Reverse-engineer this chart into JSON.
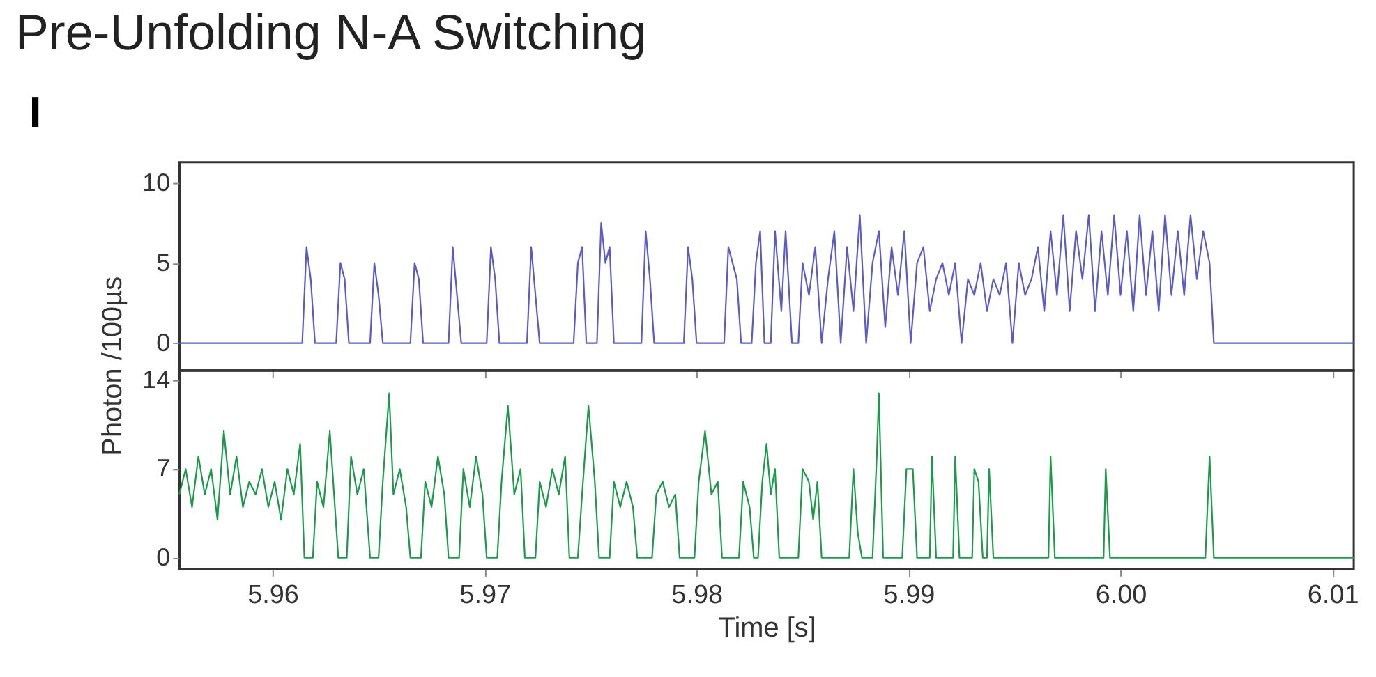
{
  "chart_data": [
    {
      "type": "line",
      "title": "Pre-Unfolding N-A Switching",
      "ylabel": "Photon /100µs",
      "annotations": [
        "I"
      ],
      "xlim": [
        5.9556,
        6.011
      ],
      "xticks": [
        5.96,
        5.97,
        5.98,
        5.99,
        6.0,
        6.01
      ],
      "ylim": [
        -1.7,
        11.3
      ],
      "yticks": [
        0,
        5,
        10
      ],
      "grid": false,
      "tick_labels": "y",
      "series": [
        {
          "color": "#5b5bc8",
          "x": [
            5.9556,
            5.9614,
            5.9616,
            5.9618,
            5.962,
            5.963,
            5.9632,
            5.9634,
            5.9636,
            5.9646,
            5.9648,
            5.965,
            5.9652,
            5.9665,
            5.9667,
            5.9669,
            5.9671,
            5.9683,
            5.9685,
            5.9687,
            5.9689,
            5.9701,
            5.9703,
            5.9705,
            5.9707,
            5.972,
            5.9722,
            5.9724,
            5.9726,
            5.9742,
            5.9744,
            5.9746,
            5.9748,
            5.9753,
            5.9755,
            5.9757,
            5.9759,
            5.9761,
            5.9774,
            5.9776,
            5.9778,
            5.978,
            5.9794,
            5.9796,
            5.9798,
            5.98,
            5.9813,
            5.9815,
            5.9817,
            5.9819,
            5.9821,
            5.9826,
            5.9828,
            5.983,
            5.9832,
            5.9835,
            5.9837,
            5.984,
            5.9842,
            5.9845,
            5.9848,
            5.985,
            5.9853,
            5.9856,
            5.9859,
            5.9862,
            5.9865,
            5.9868,
            5.9871,
            5.9874,
            5.9877,
            5.988,
            5.9883,
            5.9886,
            5.9889,
            5.9892,
            5.9895,
            5.9898,
            5.9901,
            5.9904,
            5.9907,
            5.991,
            5.9913,
            5.9916,
            5.9919,
            5.9922,
            5.9925,
            5.9928,
            5.9931,
            5.9934,
            5.9937,
            5.994,
            5.9943,
            5.9946,
            5.9949,
            5.9952,
            5.9955,
            5.9958,
            5.9961,
            5.9964,
            5.9967,
            5.997,
            5.9973,
            5.9976,
            5.9979,
            5.9982,
            5.9985,
            5.9988,
            5.9991,
            5.9994,
            5.9997,
            6.0,
            6.0003,
            6.0006,
            6.0009,
            6.0012,
            6.0015,
            6.0018,
            6.0021,
            6.0024,
            6.0027,
            6.003,
            6.0033,
            6.0036,
            6.0039,
            6.0042,
            6.0044,
            6.011
          ],
          "values": [
            0,
            0,
            6,
            4,
            0,
            0,
            5,
            4,
            0,
            0,
            5,
            3,
            0,
            0,
            5,
            4,
            0,
            0,
            6,
            3,
            0,
            0,
            6,
            4,
            0,
            0,
            6,
            3,
            0,
            0,
            5,
            6,
            0,
            0,
            7.5,
            5,
            6,
            0,
            0,
            7,
            4,
            0,
            0,
            6,
            4,
            0,
            0,
            6,
            5,
            4,
            0,
            0,
            5,
            7,
            0,
            0,
            7,
            2,
            7,
            0,
            0,
            5,
            3,
            6,
            0,
            4,
            7,
            0,
            6,
            2,
            8,
            0,
            5,
            7,
            1,
            6,
            3,
            7,
            0,
            5,
            6,
            2,
            4,
            5,
            3,
            5,
            0,
            4,
            3,
            5,
            2,
            4,
            3,
            5,
            0,
            5,
            3,
            4,
            6,
            2,
            7,
            3,
            8,
            2,
            7,
            4,
            8,
            2,
            7,
            3,
            8,
            3,
            7,
            2,
            8,
            3,
            7,
            2,
            8,
            3,
            7,
            3,
            8,
            4,
            7,
            5,
            0,
            0
          ]
        }
      ]
    },
    {
      "type": "line",
      "xlabel": "Time [s]",
      "xlim": [
        5.9556,
        6.011
      ],
      "xticks": [
        5.96,
        5.97,
        5.98,
        5.99,
        {
          "value": 6.0,
          "label": "6.00"
        },
        6.01
      ],
      "ylim": [
        -0.9,
        14.8
      ],
      "yticks": [
        0,
        7,
        14
      ],
      "grid": false,
      "series": [
        {
          "color": "#1a9a4a",
          "x": [
            5.9556,
            5.9559,
            5.9562,
            5.9565,
            5.9568,
            5.9571,
            5.9574,
            5.9577,
            5.958,
            5.9583,
            5.9586,
            5.9589,
            5.9592,
            5.9595,
            5.9598,
            5.9601,
            5.9604,
            5.9607,
            5.961,
            5.9613,
            5.9615,
            5.9619,
            5.9621,
            5.9624,
            5.9627,
            5.9629,
            5.9631,
            5.9635,
            5.9637,
            5.964,
            5.9643,
            5.9646,
            5.965,
            5.9652,
            5.9655,
            5.9657,
            5.966,
            5.9663,
            5.9665,
            5.967,
            5.9672,
            5.9675,
            5.9678,
            5.9681,
            5.9683,
            5.9688,
            5.969,
            5.9693,
            5.9696,
            5.9699,
            5.9701,
            5.9706,
            5.9708,
            5.9711,
            5.9714,
            5.9717,
            5.9719,
            5.9724,
            5.9726,
            5.9729,
            5.9732,
            5.9735,
            5.9738,
            5.974,
            5.9744,
            5.9746,
            5.9749,
            5.9752,
            5.9754,
            5.9759,
            5.9761,
            5.9764,
            5.9767,
            5.977,
            5.9772,
            5.9779,
            5.9781,
            5.9784,
            5.9787,
            5.979,
            5.9792,
            5.9799,
            5.9801,
            5.9804,
            5.9807,
            5.981,
            5.9812,
            5.982,
            5.9822,
            5.9825,
            5.9827,
            5.9829,
            5.9831,
            5.9833,
            5.9835,
            5.9837,
            5.9839,
            5.9848,
            5.985,
            5.9853,
            5.9855,
            5.9857,
            5.9859,
            5.9872,
            5.9874,
            5.9876,
            5.9878,
            5.9883,
            5.9885,
            5.9886,
            5.9888,
            5.9897,
            5.9899,
            5.9902,
            5.9904,
            5.991,
            5.9911,
            5.9913,
            5.9921,
            5.9922,
            5.9924,
            5.993,
            5.9931,
            5.9933,
            5.9935,
            5.9937,
            5.9938,
            5.994,
            5.9966,
            5.9967,
            5.9969,
            5.9992,
            5.9993,
            5.9995,
            6.004,
            6.0042,
            6.0044,
            6.011
          ],
          "values": [
            5,
            7,
            4,
            8,
            5,
            7,
            3,
            10,
            5,
            8,
            4,
            6,
            5,
            7,
            4,
            6,
            3,
            7,
            5,
            9,
            0,
            0,
            6,
            4,
            10,
            5,
            0,
            0,
            8,
            5,
            7,
            0,
            0,
            6,
            13,
            5,
            7,
            4,
            0,
            0,
            6,
            4,
            8,
            5,
            0,
            0,
            7,
            4,
            8,
            5,
            0,
            0,
            6,
            12,
            5,
            7,
            0,
            0,
            6,
            4,
            7,
            5,
            8,
            0,
            0,
            5,
            12,
            6,
            0,
            0,
            6,
            4,
            6,
            4,
            0,
            0,
            5,
            6,
            4,
            5,
            0,
            0,
            6,
            10,
            5,
            6,
            0,
            0,
            6,
            4,
            0,
            0,
            6,
            9,
            5,
            7,
            0,
            0,
            7,
            6,
            3,
            6,
            0,
            0,
            7,
            2,
            0,
            0,
            8,
            13,
            0,
            0,
            7,
            7,
            0,
            0,
            8,
            0,
            0,
            8,
            0,
            0,
            7,
            6,
            0,
            0,
            7,
            0,
            0,
            8,
            0,
            0,
            7,
            0,
            0,
            8,
            0,
            0
          ]
        }
      ]
    }
  ]
}
